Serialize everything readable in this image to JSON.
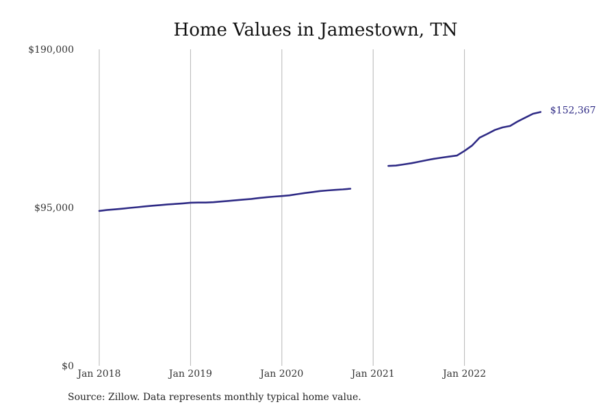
{
  "chart_data": {
    "type": "line",
    "title": "Home Values in Jamestown, TN",
    "xlabel": "",
    "ylabel": "",
    "ylim": [
      0,
      190000
    ],
    "y_ticks": [
      0,
      95000,
      190000
    ],
    "y_tick_labels": [
      "$0",
      "$95,000",
      "$190,000"
    ],
    "x_ticks": [
      "2018-01",
      "2019-01",
      "2020-01",
      "2021-01",
      "2022-01"
    ],
    "x_tick_labels": [
      "Jan 2018",
      "Jan 2019",
      "Jan 2020",
      "Jan 2021",
      "Jan 2022"
    ],
    "xlim": [
      "2018-01",
      "2023-01"
    ],
    "grid": "vertical",
    "legend": "none",
    "series": [
      {
        "color": "#2e2a85",
        "end_label": "$152,367",
        "segments": [
          [
            [
              "2018-01",
              93000
            ],
            [
              "2018-02",
              93500
            ],
            [
              "2018-03",
              93900
            ],
            [
              "2018-04",
              94300
            ],
            [
              "2018-05",
              94800
            ],
            [
              "2018-06",
              95200
            ],
            [
              "2018-07",
              95700
            ],
            [
              "2018-08",
              96100
            ],
            [
              "2018-09",
              96500
            ],
            [
              "2018-10",
              96900
            ],
            [
              "2018-11",
              97200
            ],
            [
              "2018-12",
              97500
            ],
            [
              "2019-01",
              97900
            ],
            [
              "2019-02",
              98000
            ],
            [
              "2019-03",
              98000
            ],
            [
              "2019-04",
              98200
            ],
            [
              "2019-05",
              98600
            ],
            [
              "2019-06",
              99000
            ],
            [
              "2019-07",
              99400
            ],
            [
              "2019-08",
              99800
            ],
            [
              "2019-09",
              100200
            ],
            [
              "2019-10",
              100700
            ],
            [
              "2019-11",
              101200
            ],
            [
              "2019-12",
              101600
            ],
            [
              "2020-01",
              101900
            ],
            [
              "2020-02",
              102300
            ],
            [
              "2020-03",
              103000
            ],
            [
              "2020-04",
              103700
            ],
            [
              "2020-05",
              104300
            ],
            [
              "2020-06",
              104900
            ],
            [
              "2020-07",
              105300
            ],
            [
              "2020-08",
              105600
            ],
            [
              "2020-09",
              105900
            ],
            [
              "2020-10",
              106300
            ]
          ],
          [
            [
              "2021-03",
              120000
            ],
            [
              "2021-04",
              120200
            ],
            [
              "2021-05",
              120900
            ],
            [
              "2021-06",
              121600
            ],
            [
              "2021-07",
              122500
            ],
            [
              "2021-08",
              123400
            ],
            [
              "2021-09",
              124300
            ],
            [
              "2021-10",
              125000
            ],
            [
              "2021-11",
              125600
            ],
            [
              "2021-12",
              126200
            ],
            [
              "2022-01",
              129000
            ],
            [
              "2022-02",
              132200
            ],
            [
              "2022-03",
              137000
            ],
            [
              "2022-04",
              139200
            ],
            [
              "2022-05",
              141600
            ],
            [
              "2022-06",
              143100
            ],
            [
              "2022-07",
              144000
            ],
            [
              "2022-08",
              146700
            ],
            [
              "2022-09",
              149000
            ],
            [
              "2022-10",
              151300
            ],
            [
              "2022-11",
              152367
            ]
          ]
        ]
      }
    ]
  },
  "footer": {
    "source": "Source: Zillow. Data represents monthly typical home value."
  }
}
